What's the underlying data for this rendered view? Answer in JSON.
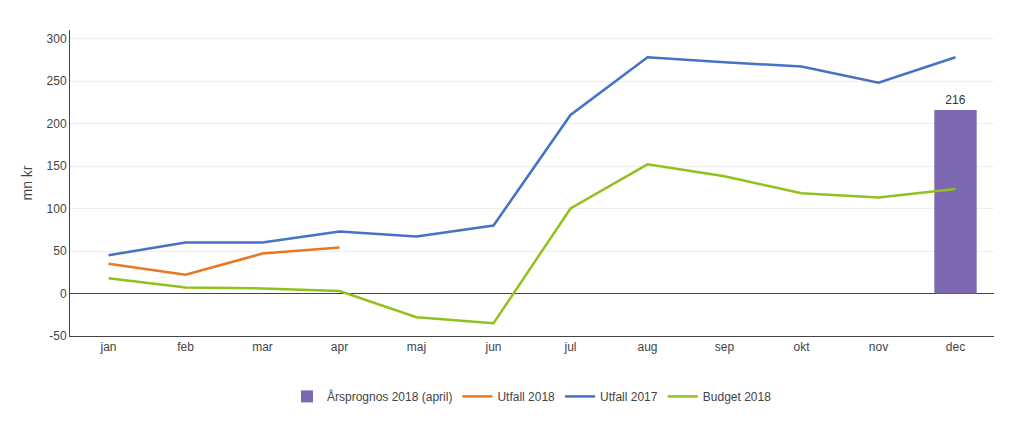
{
  "chart_data": {
    "type": "bar",
    "categories": [
      "jan",
      "feb",
      "mar",
      "apr",
      "maj",
      "jun",
      "jul",
      "aug",
      "sep",
      "okt",
      "nov",
      "dec"
    ],
    "series": [
      {
        "name": "Årsprognos 2018 (april)",
        "type": "bar",
        "color": "#7B68B0",
        "data_labels": true,
        "values": [
          null,
          null,
          null,
          null,
          null,
          null,
          null,
          null,
          null,
          null,
          null,
          216
        ]
      },
      {
        "name": "Utfall 2018",
        "type": "line",
        "color": "#E87722",
        "values": [
          35,
          22,
          47,
          54,
          null,
          null,
          null,
          null,
          null,
          null,
          null,
          null
        ]
      },
      {
        "name": "Utfall 2017",
        "type": "line",
        "color": "#4472C4",
        "values": [
          45,
          60,
          60,
          73,
          67,
          80,
          210,
          278,
          272,
          267,
          248,
          278
        ]
      },
      {
        "name": "Budget 2018",
        "type": "line",
        "color": "#92C01F",
        "values": [
          18,
          7,
          6,
          3,
          -28,
          -35,
          100,
          152,
          138,
          118,
          113,
          123
        ]
      }
    ],
    "y_label": "mn kr",
    "ylim": [
      -50,
      310
    ],
    "yticks": [
      -50,
      0,
      50,
      100,
      150,
      200,
      250,
      300
    ],
    "grid": true,
    "legend": "bottom"
  }
}
